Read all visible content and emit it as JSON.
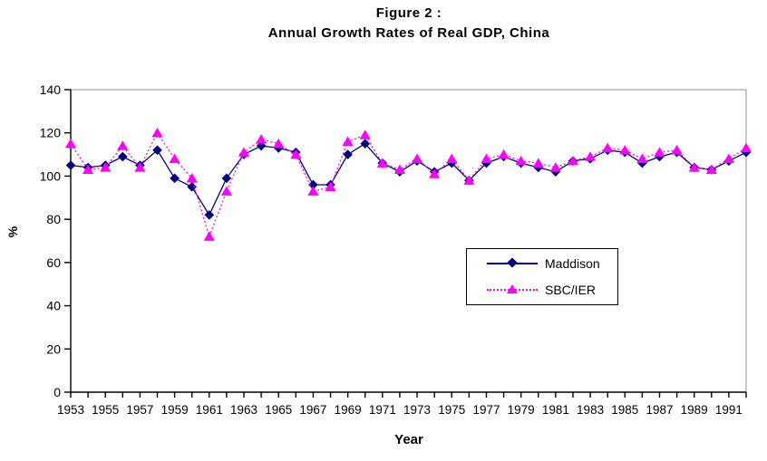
{
  "figure": {
    "title_line1": "Figure 2 :",
    "title_line2": "Annual Growth Rates of Real GDP, China"
  },
  "axes": {
    "x_title": "Year",
    "y_title": "%"
  },
  "chart_data": {
    "type": "line",
    "title": "Figure 2 : Annual Growth Rates of Real GDP, China",
    "xlabel": "Year",
    "ylabel": "%",
    "ylim": [
      0,
      140
    ],
    "ytick_labels": [
      "0",
      "20",
      "40",
      "60",
      "80",
      "100",
      "120",
      "140"
    ],
    "xtick_labels": [
      "1953",
      "1955",
      "1957",
      "1959",
      "1961",
      "1963",
      "1965",
      "1967",
      "1969",
      "1971",
      "1973",
      "1975",
      "1977",
      "1979",
      "1981",
      "1983",
      "1985",
      "1987",
      "1989",
      "1991"
    ],
    "grid": false,
    "legend_position": "middle-right",
    "years": [
      1953,
      1954,
      1955,
      1956,
      1957,
      1958,
      1959,
      1960,
      1961,
      1962,
      1963,
      1964,
      1965,
      1966,
      1967,
      1968,
      1969,
      1970,
      1971,
      1972,
      1973,
      1974,
      1975,
      1976,
      1977,
      1978,
      1979,
      1980,
      1981,
      1982,
      1983,
      1984,
      1985,
      1986,
      1987,
      1988,
      1989,
      1990,
      1991,
      1992
    ],
    "series": [
      {
        "name": "Maddison",
        "color": "#000080",
        "marker": "diamond",
        "line_style": "solid",
        "values": [
          105,
          104,
          105,
          109,
          105,
          112,
          99,
          95,
          82,
          99,
          110,
          114,
          113,
          111,
          96,
          96,
          110,
          115,
          106,
          102,
          107,
          102,
          106,
          98,
          106,
          109,
          106,
          104,
          102,
          107,
          108,
          112,
          111,
          106,
          109,
          111,
          104,
          103,
          107,
          111
        ]
      },
      {
        "name": "SBC/IER",
        "color": "#FF00FF",
        "marker": "triangle",
        "line_style": "dotted",
        "values": [
          115,
          103,
          104,
          114,
          104,
          120,
          108,
          99,
          72,
          93,
          111,
          117,
          115,
          110,
          93,
          95,
          116,
          119,
          106,
          103,
          108,
          101,
          108,
          98,
          108,
          110,
          107,
          106,
          104,
          107,
          109,
          113,
          112,
          108,
          111,
          112,
          104,
          103,
          108,
          113
        ]
      }
    ]
  },
  "colors": {
    "axis": "#000000",
    "plot_border": "#909090",
    "text": "#000000",
    "background": "#ffffff"
  }
}
